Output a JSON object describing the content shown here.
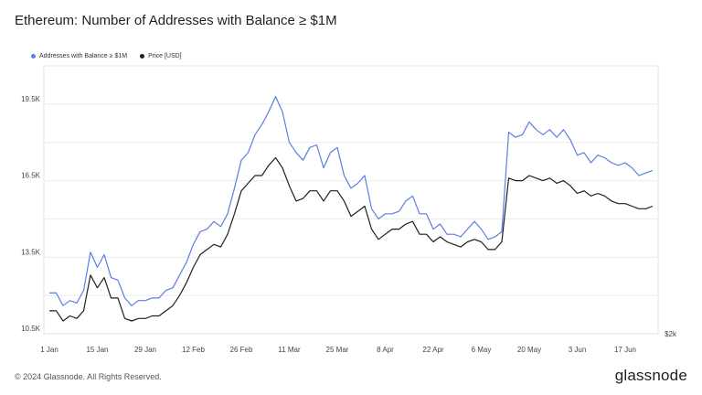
{
  "title": "Ethereum: Number of Addresses with Balance ≥ $1M",
  "footer": "© 2024 Glassnode. All Rights Reserved.",
  "brand": "glassnode",
  "chart_data": {
    "type": "line",
    "title": "Ethereum: Number of Addresses with Balance ≥ $1M",
    "legend": "top-left",
    "grid": true,
    "ylim": [
      10500,
      21000
    ],
    "yticks": [
      "10.5K",
      "13.5K",
      "16.5K",
      "19.5K"
    ],
    "ytick_values": [
      10500,
      13500,
      16500,
      19500
    ],
    "right_axis_label": "$2k",
    "xticks": [
      "1 Jan",
      "15 Jan",
      "29 Jan",
      "12 Feb",
      "26 Feb",
      "11 Mar",
      "25 Mar",
      "8 Apr",
      "22 Apr",
      "6 May",
      "20 May",
      "3 Jun",
      "17 Jun"
    ],
    "xtick_days": [
      0,
      14,
      28,
      42,
      56,
      70,
      84,
      98,
      112,
      126,
      140,
      154,
      168
    ],
    "x_days": [
      0,
      2,
      4,
      6,
      8,
      10,
      12,
      14,
      16,
      18,
      20,
      22,
      24,
      26,
      28,
      30,
      32,
      34,
      36,
      38,
      40,
      42,
      44,
      46,
      48,
      50,
      52,
      54,
      56,
      58,
      60,
      62,
      64,
      66,
      68,
      70,
      72,
      74,
      76,
      78,
      80,
      82,
      84,
      86,
      88,
      90,
      92,
      94,
      96,
      98,
      100,
      102,
      104,
      106,
      108,
      110,
      112,
      114,
      116,
      118,
      120,
      122,
      124,
      126,
      128,
      130,
      132,
      134,
      136,
      138,
      140,
      142,
      144,
      146,
      148,
      150,
      152,
      154,
      156,
      158,
      160,
      162,
      164,
      166,
      168,
      170,
      172,
      174,
      176
    ],
    "series": [
      {
        "name": "Addresses with Balance ≥ $1M",
        "color": "#5b7fe0",
        "values": [
          12100,
          12100,
          11600,
          11800,
          11700,
          12200,
          13700,
          13100,
          13600,
          12700,
          12600,
          11900,
          11600,
          11800,
          11800,
          11900,
          11900,
          12200,
          12300,
          12800,
          13300,
          14000,
          14500,
          14600,
          14900,
          14700,
          15200,
          16200,
          17300,
          17600,
          18300,
          18700,
          19200,
          19800,
          19200,
          18000,
          17600,
          17300,
          17800,
          17900,
          17000,
          17600,
          17800,
          16700,
          16200,
          16400,
          16700,
          15400,
          15000,
          15200,
          15200,
          15300,
          15700,
          15900,
          15200,
          15200,
          14600,
          14800,
          14400,
          14400,
          14300,
          14600,
          14900,
          14600,
          14200,
          14300,
          14500,
          18400,
          18200,
          18300,
          18800,
          18500,
          18300,
          18500,
          18200,
          18500,
          18100,
          17500,
          17600,
          17200,
          17500,
          17400,
          17200,
          17100,
          17200,
          17000,
          16700,
          16800,
          16900
        ]
      },
      {
        "name": "Price [USD]",
        "color": "#1f1f1f",
        "values": [
          11400,
          11400,
          11000,
          11200,
          11100,
          11400,
          12800,
          12300,
          12700,
          11900,
          11900,
          11100,
          11000,
          11100,
          11100,
          11200,
          11200,
          11400,
          11600,
          12000,
          12500,
          13100,
          13600,
          13800,
          14000,
          13900,
          14400,
          15200,
          16100,
          16400,
          16700,
          16700,
          17100,
          17400,
          17000,
          16300,
          15700,
          15800,
          16100,
          16100,
          15700,
          16100,
          16100,
          15700,
          15100,
          15300,
          15500,
          14600,
          14200,
          14400,
          14600,
          14600,
          14800,
          14900,
          14400,
          14400,
          14100,
          14300,
          14100,
          14000,
          13900,
          14100,
          14200,
          14100,
          13800,
          13800,
          14100,
          16600,
          16500,
          16500,
          16700,
          16600,
          16500,
          16600,
          16400,
          16500,
          16300,
          16000,
          16100,
          15900,
          16000,
          15900,
          15700,
          15600,
          15600,
          15500,
          15400,
          15400,
          15500
        ]
      }
    ]
  }
}
